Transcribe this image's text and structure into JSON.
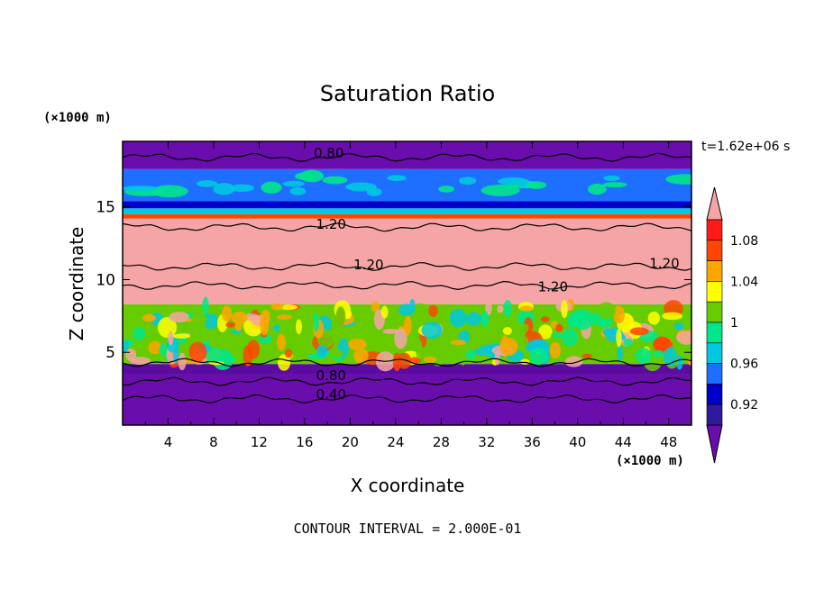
{
  "chart_data": {
    "type": "heatmap",
    "title": "Saturation Ratio",
    "xlabel": "X coordinate",
    "ylabel": "Z coordinate",
    "x_unit": "(×1000 m)",
    "y_unit": "(×1000 m)",
    "time_label": "t=1.62e+06 s",
    "footer": "CONTOUR INTERVAL = 2.000E-01",
    "xlim": [
      0,
      50
    ],
    "ylim": [
      0,
      19.5
    ],
    "x_ticks": [
      4,
      8,
      12,
      16,
      20,
      24,
      28,
      32,
      36,
      40,
      44,
      48
    ],
    "y_ticks": [
      5,
      10,
      15
    ],
    "colorbar": {
      "labels": [
        "1.08",
        "1.04",
        "1",
        "0.96",
        "0.92"
      ],
      "colors": [
        "#6a0dad",
        "#2e1a9e",
        "#0000cd",
        "#1e6fff",
        "#00c8e0",
        "#00e68a",
        "#66cc00",
        "#ffff00",
        "#ffa500",
        "#ff4500",
        "#ff1a1a",
        "#f5a5a5"
      ],
      "levels": [
        0.9,
        0.92,
        0.94,
        0.96,
        0.98,
        1.0,
        1.02,
        1.04,
        1.06,
        1.08,
        1.1
      ]
    },
    "contour_labels": [
      {
        "text": "0.80",
        "x": 16.8,
        "z": 18.4
      },
      {
        "text": "1.20",
        "x": 17.0,
        "z": 13.5
      },
      {
        "text": "1.20",
        "x": 20.3,
        "z": 10.7
      },
      {
        "text": "1.20",
        "x": 46.3,
        "z": 10.8
      },
      {
        "text": "1.20",
        "x": 36.5,
        "z": 9.2
      },
      {
        "text": "0.80",
        "x": 17.0,
        "z": 3.1
      },
      {
        "text": "0.40",
        "x": 17.0,
        "z": 1.8
      }
    ],
    "bands": [
      {
        "z0": 0.0,
        "z1": 3.5,
        "color": "#6a0dad"
      },
      {
        "z0": 3.5,
        "z1": 4.2,
        "color": "#5a0ca0"
      },
      {
        "z0": 4.2,
        "z1": 8.3,
        "color": "#66cc00"
      },
      {
        "z0": 8.3,
        "z1": 14.2,
        "color": "#f5a5a5"
      },
      {
        "z0": 14.2,
        "z1": 14.5,
        "color": "#ff4500"
      },
      {
        "z0": 14.5,
        "z1": 14.9,
        "color": "#00c8e0"
      },
      {
        "z0": 14.9,
        "z1": 15.4,
        "color": "#0000cd"
      },
      {
        "z0": 15.4,
        "z1": 17.6,
        "color": "#1e6fff"
      },
      {
        "z0": 17.6,
        "z1": 19.5,
        "color": "#6a0dad"
      }
    ]
  }
}
